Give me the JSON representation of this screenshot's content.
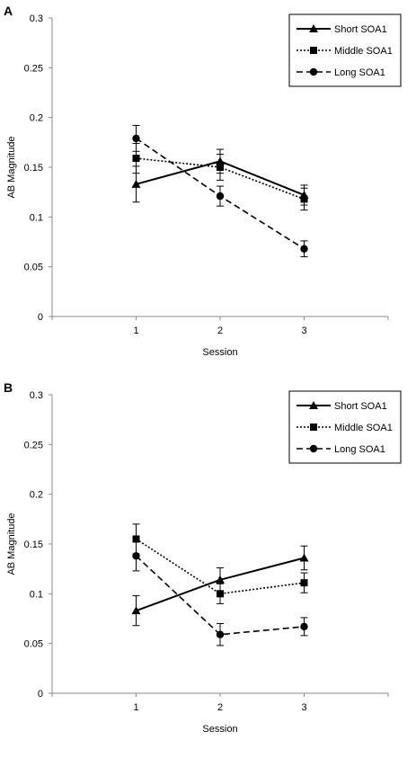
{
  "chart_data": [
    {
      "type": "line",
      "panel_label": "A",
      "xlabel": "Session",
      "ylabel": "AB Magnitude",
      "x": [
        1,
        2,
        3
      ],
      "x_ticks": [
        "1",
        "2",
        "3"
      ],
      "xlim": [
        0,
        4
      ],
      "ylim": [
        0,
        0.3
      ],
      "y_ticks": [
        "0",
        "0.05",
        "0.1",
        "0.15",
        "0.2",
        "0.25",
        "0.3"
      ],
      "grid": false,
      "legend_position": "top-right",
      "series": [
        {
          "name": "Short SOA1",
          "style": "solid",
          "marker": "triangle",
          "values": [
            0.133,
            0.156,
            0.122
          ],
          "errors": [
            0.018,
            0.012,
            0.01
          ]
        },
        {
          "name": "Middle SOA1",
          "style": "dotted",
          "marker": "square",
          "values": [
            0.159,
            0.15,
            0.118
          ],
          "errors": [
            0.015,
            0.013,
            0.011
          ]
        },
        {
          "name": "Long SOA1",
          "style": "dashed",
          "marker": "circle",
          "values": [
            0.179,
            0.121,
            0.068
          ],
          "errors": [
            0.013,
            0.01,
            0.008
          ]
        }
      ]
    },
    {
      "type": "line",
      "panel_label": "B",
      "xlabel": "Session",
      "ylabel": "AB Magnitude",
      "x": [
        1,
        2,
        3
      ],
      "x_ticks": [
        "1",
        "2",
        "3"
      ],
      "xlim": [
        0,
        4
      ],
      "ylim": [
        0,
        0.3
      ],
      "y_ticks": [
        "0",
        "0.05",
        "0.1",
        "0.15",
        "0.2",
        "0.25",
        "0.3"
      ],
      "grid": false,
      "legend_position": "top-right",
      "series": [
        {
          "name": "Short SOA1",
          "style": "solid",
          "marker": "triangle",
          "values": [
            0.083,
            0.114,
            0.136
          ],
          "errors": [
            0.015,
            0.012,
            0.012
          ]
        },
        {
          "name": "Middle SOA1",
          "style": "dotted",
          "marker": "square",
          "values": [
            0.155,
            0.1,
            0.111
          ],
          "errors": [
            0.015,
            0.01,
            0.01
          ]
        },
        {
          "name": "Long SOA1",
          "style": "dashed",
          "marker": "circle",
          "values": [
            0.138,
            0.059,
            0.067
          ],
          "errors": [
            0.015,
            0.011,
            0.009
          ]
        }
      ]
    }
  ]
}
